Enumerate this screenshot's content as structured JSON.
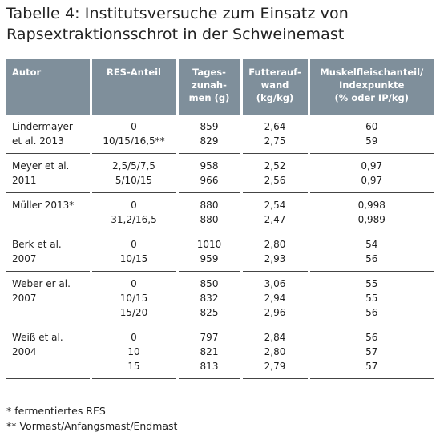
{
  "title": "Tabelle 4: Institutsversuche zum Einsatz von Rapsextraktionsschrot in der Schweinemast",
  "headers": [
    "Autor",
    "RES-Anteil",
    "Tages-\nzunah-\nmen (g)",
    "Futterauf-\nwand\n(kg/kg)",
    "Muskelfleischanteil/\nIndexpunkte\n(% oder IP/kg)"
  ],
  "rows": [
    {
      "autor": [
        "Lindermayer",
        "et al. 2013"
      ],
      "res": [
        "0",
        "10/15/16,5**"
      ],
      "tz": [
        "859",
        "829"
      ],
      "fa": [
        "2,64",
        "2,75"
      ],
      "mf": [
        "60",
        "59"
      ]
    },
    {
      "autor": [
        "Meyer et al.",
        "2011"
      ],
      "res": [
        "2,5/5/7,5",
        "5/10/15"
      ],
      "tz": [
        "958",
        "966"
      ],
      "fa": [
        "2,52",
        "2,56"
      ],
      "mf": [
        "0,97",
        "0,97"
      ]
    },
    {
      "autor": [
        "Müller 2013*"
      ],
      "res": [
        "0",
        "31,2/16,5"
      ],
      "tz": [
        "880",
        "880"
      ],
      "fa": [
        "2,54",
        "2,47"
      ],
      "mf": [
        "0,998",
        "0,989"
      ]
    },
    {
      "autor": [
        "Berk et al.",
        "2007"
      ],
      "res": [
        "0",
        "10/15"
      ],
      "tz": [
        "1010",
        "959"
      ],
      "fa": [
        "2,80",
        "2,93"
      ],
      "mf": [
        "54",
        "56"
      ]
    },
    {
      "autor": [
        "Weber er al.",
        "2007"
      ],
      "res": [
        "0",
        "10/15",
        "15/20"
      ],
      "tz": [
        "850",
        "832",
        "825"
      ],
      "fa": [
        "3,06",
        "2,94",
        "2,96"
      ],
      "mf": [
        "55",
        "55",
        "56"
      ]
    },
    {
      "autor": [
        "Weiß et al.",
        "2004"
      ],
      "res": [
        "0",
        "10",
        "15"
      ],
      "tz": [
        "797",
        "821",
        "813"
      ],
      "fa": [
        "2,84",
        "2,80",
        "2,79"
      ],
      "mf": [
        "56",
        "57",
        "57"
      ]
    }
  ],
  "footnotes": [
    "* fermentiertes RES",
    "** Vormast/Anfangsmast/Endmast"
  ]
}
